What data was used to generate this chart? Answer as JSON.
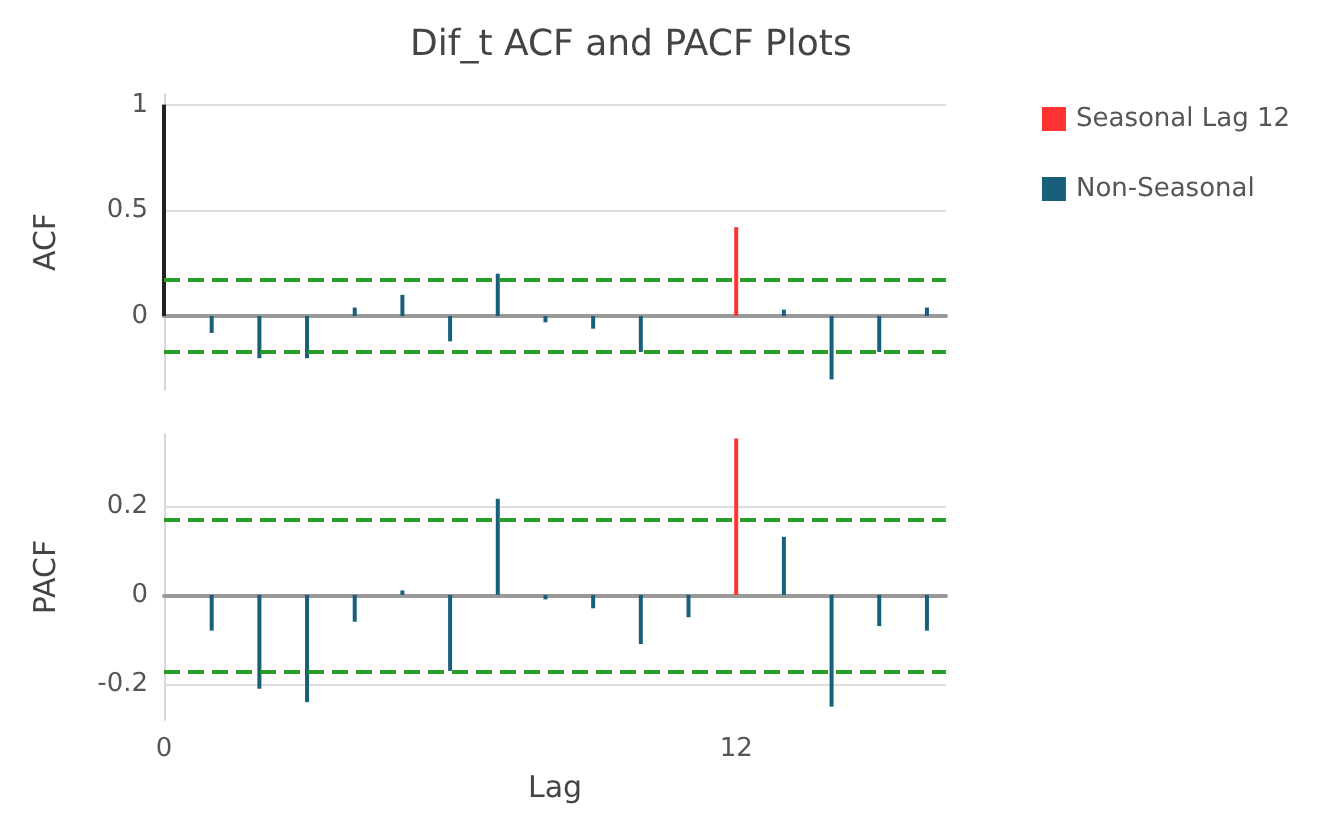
{
  "chart_data": [
    {
      "type": "bar",
      "title": "Dif_t ACF and PACF Plots",
      "ylabel": "ACF",
      "xlim": [
        0,
        16.4
      ],
      "ylim": [
        -0.35,
        1.05
      ],
      "yticks": [
        0,
        0.5,
        1
      ],
      "grid": "y",
      "legend": "top right",
      "tick_labels": "y",
      "series": [
        {
          "color": "#222222",
          "x": [
            0
          ],
          "values": [
            1
          ]
        },
        {
          "name": "Seasonal Lag 12",
          "color": "#ff3333",
          "x": [
            12
          ],
          "values": [
            0.42
          ]
        },
        {
          "name": "Non-Seasonal",
          "color": "#1a5f7a",
          "x": [
            1,
            2,
            3,
            4,
            5,
            6,
            7,
            8,
            9,
            10,
            11,
            13,
            14,
            15,
            16
          ],
          "values": [
            -0.08,
            -0.2,
            -0.2,
            0.04,
            0.1,
            -0.12,
            0.2,
            -0.03,
            -0.06,
            -0.17,
            0,
            0.03,
            -0.3,
            -0.17,
            0.04
          ]
        }
      ],
      "ref_lines": [
        {
          "axis": "y",
          "value": 0.17,
          "color": "#2a9a2a",
          "line_style": "dashed"
        },
        {
          "axis": "y",
          "value": -0.17,
          "color": "#2a9a2a",
          "line_style": "dashed"
        }
      ]
    },
    {
      "type": "bar",
      "xlabel": "Lag",
      "ylabel": "PACF",
      "xlim": [
        0,
        16.4
      ],
      "xticks": [
        0,
        12
      ],
      "ylim": [
        -0.28,
        0.36
      ],
      "yticks": [
        -0.2,
        0,
        0.2
      ],
      "grid": "y",
      "series": [
        {
          "color": "#ff3333",
          "x": [
            12
          ],
          "values": [
            0.35
          ]
        },
        {
          "color": "#1a5f7a",
          "x": [
            1,
            2,
            3,
            4,
            5,
            6,
            7,
            8,
            9,
            10,
            11,
            13,
            14,
            15,
            16
          ],
          "values": [
            -0.08,
            -0.21,
            -0.24,
            -0.06,
            0.01,
            -0.17,
            0.215,
            -0.01,
            -0.03,
            -0.11,
            -0.05,
            0.13,
            -0.25,
            -0.07,
            -0.08
          ]
        }
      ],
      "ref_lines": [
        {
          "axis": "y",
          "value": 0.17,
          "color": "#2a9a2a",
          "line_style": "dashed"
        },
        {
          "axis": "y",
          "value": -0.17,
          "color": "#2a9a2a",
          "line_style": "dashed"
        }
      ]
    }
  ]
}
